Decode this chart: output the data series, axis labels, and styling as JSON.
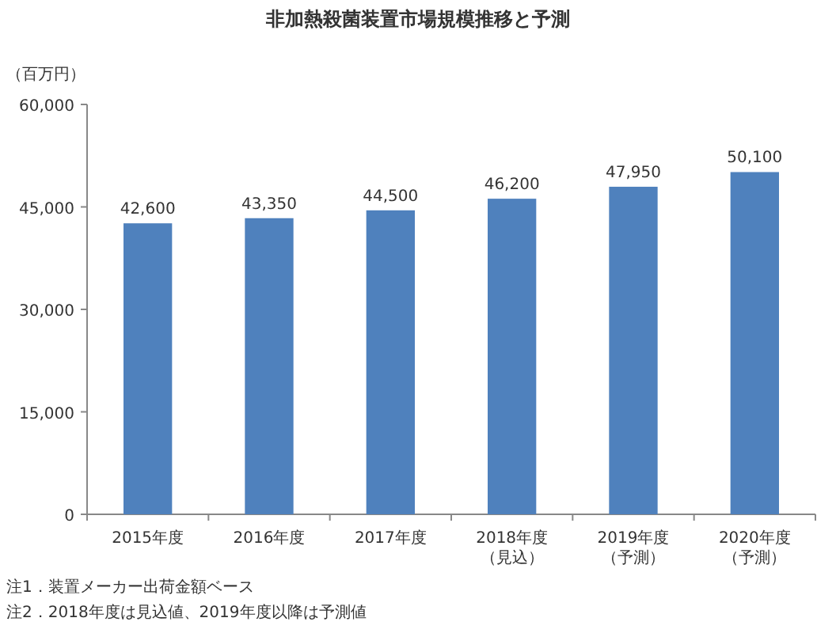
{
  "chart_data": {
    "type": "bar",
    "title": "非加熱殺菌装置市場規模推移と予測",
    "ylabel": "（百万円）",
    "categories": [
      "2015年度",
      "2016年度",
      "2017年度",
      "2018年度（見込）",
      "2019年度（予測）",
      "2020年度（予測）"
    ],
    "values": [
      42600,
      43350,
      44500,
      46200,
      47950,
      50100
    ],
    "value_labels": [
      "42,600",
      "43,350",
      "44,500",
      "46,200",
      "47,950",
      "50,100"
    ],
    "color": "#4f81bd",
    "ylim": [
      0,
      60000
    ],
    "yticks": [
      {
        "value": 0,
        "label": "0"
      },
      {
        "value": 15000,
        "label": "15,000"
      },
      {
        "value": 30000,
        "label": "30,000"
      },
      {
        "value": 45000,
        "label": "45,000"
      },
      {
        "value": 60000,
        "label": "60,000"
      }
    ],
    "grid": false,
    "annotations": [
      "注1．装置メーカー出荷金額ベース",
      "注2．2018年度は見込値、2019年度以降は予測値"
    ]
  }
}
